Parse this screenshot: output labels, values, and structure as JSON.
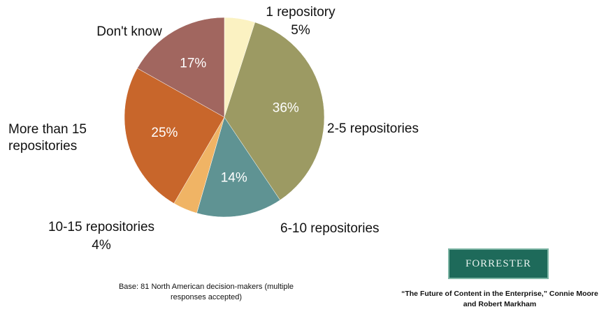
{
  "chart_data": {
    "type": "pie",
    "categories": [
      "1 repository",
      "2-5 repositories",
      "6-10 repositories",
      "10-15 repositories",
      "More than 15 repositories",
      "Don't know"
    ],
    "values": [
      5,
      36,
      14,
      4,
      25,
      17
    ],
    "value_labels": [
      "5%",
      "36%",
      "14%",
      "4%",
      "25%",
      "17%"
    ],
    "colors": [
      "#fbf2c2",
      "#9c9a63",
      "#5f9393",
      "#f0b465",
      "#c8662b",
      "#a1665f"
    ],
    "note": "Base: 81 North American decision-makers (multiple responses accepted)",
    "logo": "FORRESTER",
    "source": "“The Future of Content in the Enterprise,” Connie Moore and Robert Markham"
  }
}
